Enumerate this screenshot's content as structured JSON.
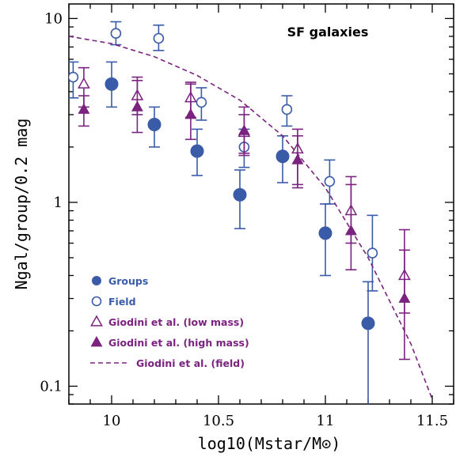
{
  "chart_data": {
    "type": "scatter",
    "title": "SF galaxies",
    "xlabel": "log10(Mstar/M⊙)",
    "ylabel": "Ngal/group/0.2 mag",
    "xlim": [
      9.8,
      11.6
    ],
    "ylim": [
      0.08,
      12
    ],
    "yscale": "log",
    "grid": false,
    "legend_position": "bottom-left",
    "x_ticks": [
      "10",
      "10.5",
      "11",
      "11.5"
    ],
    "y_ticks": [
      "0.1",
      "1",
      "10"
    ],
    "colors": {
      "blue": "#3a5ba8",
      "purple": "#7a237f"
    },
    "series": [
      {
        "name": "Groups",
        "marker": "filled-circle",
        "color": "#3a5ba8",
        "points": [
          {
            "x": 10.0,
            "y": 4.4,
            "ylo": 3.3,
            "yhi": 5.8
          },
          {
            "x": 10.2,
            "y": 2.65,
            "ylo": 2.0,
            "yhi": 3.3
          },
          {
            "x": 10.4,
            "y": 1.9,
            "ylo": 1.4,
            "yhi": 2.5
          },
          {
            "x": 10.6,
            "y": 1.1,
            "ylo": 0.72,
            "yhi": 1.5
          },
          {
            "x": 10.8,
            "y": 1.78,
            "ylo": 1.28,
            "yhi": 2.3
          },
          {
            "x": 11.0,
            "y": 0.68,
            "ylo": 0.4,
            "yhi": 0.98
          },
          {
            "x": 11.2,
            "y": 0.22,
            "ylo": 0.078,
            "yhi": 0.37
          }
        ]
      },
      {
        "name": "Field",
        "marker": "open-circle",
        "color": "#3a5ba8",
        "points": [
          {
            "x": 9.82,
            "y": 4.8,
            "ylo": 3.7,
            "yhi": 5.8
          },
          {
            "x": 10.02,
            "y": 8.3,
            "ylo": 7.2,
            "yhi": 9.6
          },
          {
            "x": 10.22,
            "y": 7.8,
            "ylo": 6.7,
            "yhi": 9.2
          },
          {
            "x": 10.42,
            "y": 3.5,
            "ylo": 2.8,
            "yhi": 4.2
          },
          {
            "x": 10.62,
            "y": 2.0,
            "ylo": 1.55,
            "yhi": 2.5
          },
          {
            "x": 10.82,
            "y": 3.2,
            "ylo": 2.6,
            "yhi": 3.8
          },
          {
            "x": 11.02,
            "y": 1.3,
            "ylo": 0.98,
            "yhi": 1.7
          },
          {
            "x": 11.22,
            "y": 0.53,
            "ylo": 0.33,
            "yhi": 0.85
          }
        ]
      },
      {
        "name": "Giodini et al. (low mass)",
        "marker": "open-triangle",
        "color": "#7a237f",
        "points": [
          {
            "x": 9.87,
            "y": 4.4,
            "ylo": 3.3,
            "yhi": 5.4
          },
          {
            "x": 10.12,
            "y": 3.8,
            "ylo": 3.0,
            "yhi": 4.6
          },
          {
            "x": 10.37,
            "y": 3.7,
            "ylo": 2.9,
            "yhi": 4.5
          },
          {
            "x": 10.62,
            "y": 2.4,
            "ylo": 1.85,
            "yhi": 3.0
          },
          {
            "x": 10.87,
            "y": 1.95,
            "ylo": 1.25,
            "yhi": 2.5
          },
          {
            "x": 11.12,
            "y": 0.9,
            "ylo": 0.6,
            "yhi": 1.25
          },
          {
            "x": 11.37,
            "y": 0.4,
            "ylo": 0.25,
            "yhi": 0.55
          }
        ]
      },
      {
        "name": "Giodini et al. (high mass)",
        "marker": "filled-triangle",
        "color": "#7a237f",
        "points": [
          {
            "x": 9.87,
            "y": 3.2,
            "ylo": 2.6,
            "yhi": 3.8
          },
          {
            "x": 10.12,
            "y": 3.3,
            "ylo": 2.4,
            "yhi": 4.8
          },
          {
            "x": 10.37,
            "y": 3.0,
            "ylo": 2.2,
            "yhi": 4.4
          },
          {
            "x": 10.62,
            "y": 2.45,
            "ylo": 1.8,
            "yhi": 3.3
          },
          {
            "x": 10.87,
            "y": 1.7,
            "ylo": 1.2,
            "yhi": 2.3
          },
          {
            "x": 11.12,
            "y": 0.7,
            "ylo": 0.43,
            "yhi": 1.38
          },
          {
            "x": 11.37,
            "y": 0.3,
            "ylo": 0.14,
            "yhi": 0.71
          }
        ]
      },
      {
        "name": "Giodini et al. (field)",
        "marker": "dashed-line",
        "color": "#7a237f",
        "points": [
          {
            "x": 9.8,
            "y": 8.0
          },
          {
            "x": 10.0,
            "y": 7.3
          },
          {
            "x": 10.2,
            "y": 6.2
          },
          {
            "x": 10.4,
            "y": 4.9
          },
          {
            "x": 10.6,
            "y": 3.6
          },
          {
            "x": 10.8,
            "y": 2.3
          },
          {
            "x": 11.0,
            "y": 1.2
          },
          {
            "x": 11.2,
            "y": 0.5
          },
          {
            "x": 11.4,
            "y": 0.17
          },
          {
            "x": 11.5,
            "y": 0.085
          }
        ]
      }
    ]
  }
}
